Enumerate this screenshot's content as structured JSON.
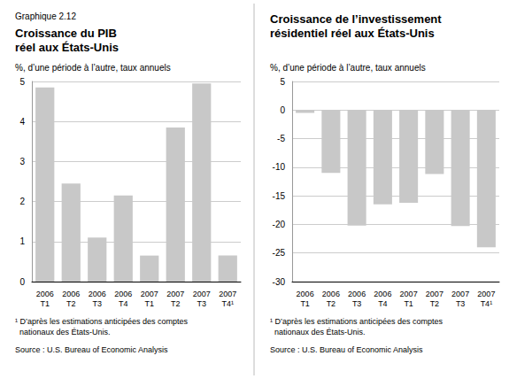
{
  "title": "Graphique 2.12",
  "chart_data": [
    {
      "type": "bar",
      "title": "Croissance du PIB\nréel aux États-Unis",
      "subtitle": "%, d’une période à l’autre, taux annuels",
      "categories": [
        "2006\nT1",
        "2006\nT2",
        "2006\nT3",
        "2006\nT4",
        "2007\nT1",
        "2007\nT2",
        "2007\nT3",
        "2007\nT4¹"
      ],
      "values": [
        4.85,
        2.45,
        1.1,
        2.15,
        0.65,
        3.85,
        4.95,
        0.65
      ],
      "color": "#c8c8c8",
      "ylim": [
        0,
        5
      ],
      "yticks": [
        0,
        1,
        2,
        3,
        4,
        5
      ],
      "grid": true,
      "annotations": [
        "¹ D’après les estimations anticipées des comptes\n  nationaux des États-Unis.",
        "Source : U.S. Bureau of Economic Analysis"
      ]
    },
    {
      "type": "bar",
      "title": "Croissance de l’investissement\nrésidentiel réel aux États-Unis",
      "subtitle": "%, d’une période à l’autre, taux annuels",
      "categories": [
        "2006\nT1",
        "2006\nT2",
        "2006\nT3",
        "2006\nT4",
        "2007\nT1",
        "2007\nT2",
        "2007\nT3",
        "2007\nT4¹"
      ],
      "values": [
        -0.5,
        -11.0,
        -20.2,
        -16.5,
        -16.2,
        -11.2,
        -20.3,
        -24.0
      ],
      "color": "#c8c8c8",
      "ylim": [
        -30,
        5
      ],
      "yticks": [
        -30,
        -25,
        -20,
        -15,
        -10,
        -5,
        0,
        5
      ],
      "grid": true,
      "annotations": [
        "¹ D’après les estimations anticipées des comptes\n  nationaux des États-Unis.",
        "Source : U.S. Bureau of Economic Analysis"
      ]
    }
  ]
}
